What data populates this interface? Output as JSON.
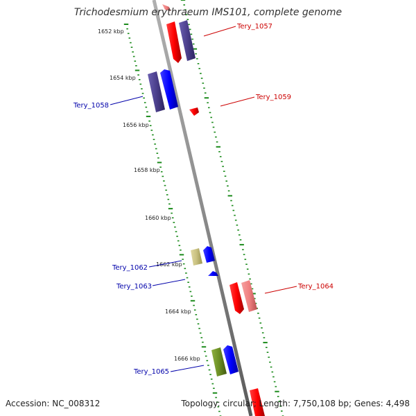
{
  "title": "Trichodesmium erythraeum IMS101, complete genome",
  "accession": "Accession: NC_008312",
  "topology": "Topology: circular; Length: 7,750,108 bp; Genes: 4,498",
  "ticks": [
    "1652 kbp",
    "1654 kbp",
    "1656 kbp",
    "1658 kbp",
    "1660 kbp",
    "1662 kbp",
    "1664 kbp",
    "1666 kbp"
  ],
  "genes": [
    {
      "label": "Tery_1057",
      "strand": "forward",
      "color": "#cc0000"
    },
    {
      "label": "Tery_1058",
      "strand": "reverse",
      "color": "#0000aa"
    },
    {
      "label": "Tery_1059",
      "strand": "forward",
      "color": "#cc0000"
    },
    {
      "label": "Tery_1062",
      "strand": "reverse",
      "color": "#0000aa"
    },
    {
      "label": "Tery_1063",
      "strand": "reverse",
      "color": "#0000aa"
    },
    {
      "label": "Tery_1064",
      "strand": "forward",
      "color": "#cc0000"
    },
    {
      "label": "Tery_1065",
      "strand": "reverse",
      "color": "#0000aa"
    }
  ],
  "colors": {
    "backbone": "#8c8c8c",
    "tick_dots": "#1a8a1a",
    "forward_gene": "#ff0000",
    "forward_gene_light": "#f08080",
    "reverse_gene": "#0000ff",
    "cog_purple": "#4b3f8c",
    "cog_khaki": "#c8c080",
    "cog_olive": "#6b8e23",
    "forward_label": "#cc0000",
    "reverse_label": "#0000aa"
  }
}
